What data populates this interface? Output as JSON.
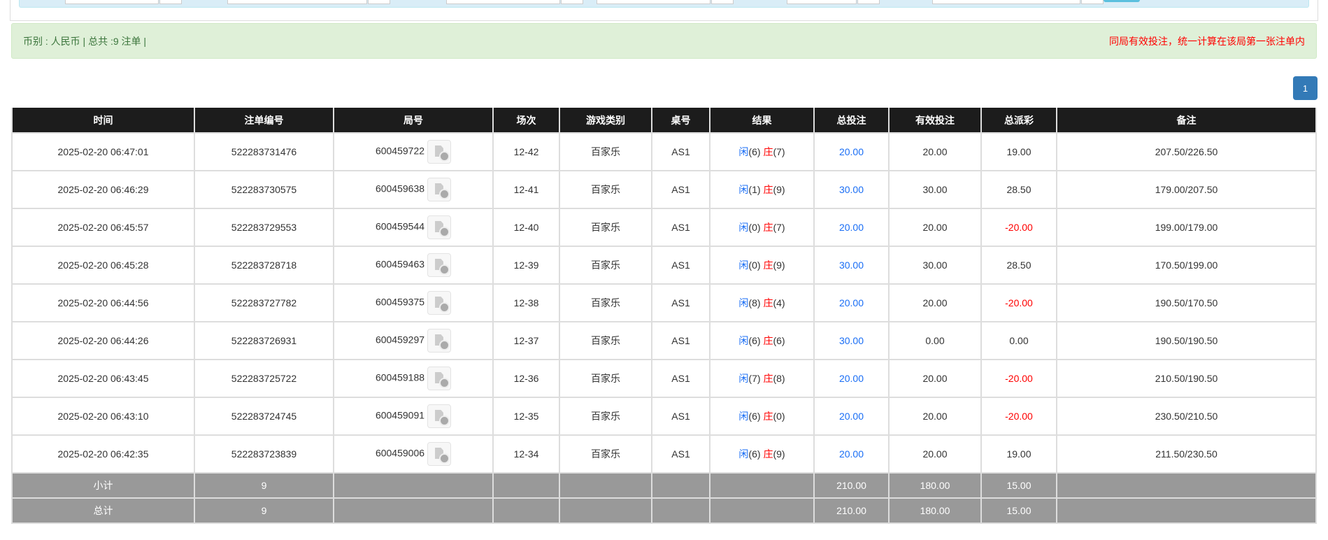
{
  "summary": {
    "left": "币别 : 人民币 | 总共 :9 注单 |",
    "right": "同局有效投注，统一计算在该局第一张注单内"
  },
  "pagination": {
    "current": "1"
  },
  "colors": {
    "player": "#1a6ef5",
    "banker": "#ff0000",
    "header": "#1c1c1c",
    "total_row": "#999999"
  },
  "table": {
    "headers": [
      "时间",
      "注单编号",
      "局号",
      "场次",
      "游戏类别",
      "桌号",
      "结果",
      "总投注",
      "有效投注",
      "总派彩",
      "备注"
    ],
    "rows": [
      {
        "time": "2025-02-20 06:47:01",
        "bet_id": "522283731476",
        "round": "600459722",
        "session": "12-42",
        "game": "百家乐",
        "table": "AS1",
        "player": "闲",
        "player_pts": "(6)",
        "banker": "庄",
        "banker_pts": "(7)",
        "total_bet": "20.00",
        "valid_bet": "20.00",
        "payout": "19.00",
        "payout_negative": false,
        "note": "207.50/226.50"
      },
      {
        "time": "2025-02-20 06:46:29",
        "bet_id": "522283730575",
        "round": "600459638",
        "session": "12-41",
        "game": "百家乐",
        "table": "AS1",
        "player": "闲",
        "player_pts": "(1)",
        "banker": "庄",
        "banker_pts": "(9)",
        "total_bet": "30.00",
        "valid_bet": "30.00",
        "payout": "28.50",
        "payout_negative": false,
        "note": "179.00/207.50"
      },
      {
        "time": "2025-02-20 06:45:57",
        "bet_id": "522283729553",
        "round": "600459544",
        "session": "12-40",
        "game": "百家乐",
        "table": "AS1",
        "player": "闲",
        "player_pts": "(0)",
        "banker": "庄",
        "banker_pts": "(7)",
        "total_bet": "20.00",
        "valid_bet": "20.00",
        "payout": "-20.00",
        "payout_negative": true,
        "note": "199.00/179.00"
      },
      {
        "time": "2025-02-20 06:45:28",
        "bet_id": "522283728718",
        "round": "600459463",
        "session": "12-39",
        "game": "百家乐",
        "table": "AS1",
        "player": "闲",
        "player_pts": "(0)",
        "banker": "庄",
        "banker_pts": "(9)",
        "total_bet": "30.00",
        "valid_bet": "30.00",
        "payout": "28.50",
        "payout_negative": false,
        "note": "170.50/199.00"
      },
      {
        "time": "2025-02-20 06:44:56",
        "bet_id": "522283727782",
        "round": "600459375",
        "session": "12-38",
        "game": "百家乐",
        "table": "AS1",
        "player": "闲",
        "player_pts": "(8)",
        "banker": "庄",
        "banker_pts": "(4)",
        "total_bet": "20.00",
        "valid_bet": "20.00",
        "payout": "-20.00",
        "payout_negative": true,
        "note": "190.50/170.50"
      },
      {
        "time": "2025-02-20 06:44:26",
        "bet_id": "522283726931",
        "round": "600459297",
        "session": "12-37",
        "game": "百家乐",
        "table": "AS1",
        "player": "闲",
        "player_pts": "(6)",
        "banker": "庄",
        "banker_pts": "(6)",
        "total_bet": "30.00",
        "valid_bet": "0.00",
        "payout": "0.00",
        "payout_negative": false,
        "note": "190.50/190.50"
      },
      {
        "time": "2025-02-20 06:43:45",
        "bet_id": "522283725722",
        "round": "600459188",
        "session": "12-36",
        "game": "百家乐",
        "table": "AS1",
        "player": "闲",
        "player_pts": "(7)",
        "banker": "庄",
        "banker_pts": "(8)",
        "total_bet": "20.00",
        "valid_bet": "20.00",
        "payout": "-20.00",
        "payout_negative": true,
        "note": "210.50/190.50"
      },
      {
        "time": "2025-02-20 06:43:10",
        "bet_id": "522283724745",
        "round": "600459091",
        "session": "12-35",
        "game": "百家乐",
        "table": "AS1",
        "player": "闲",
        "player_pts": "(6)",
        "banker": "庄",
        "banker_pts": "(0)",
        "total_bet": "20.00",
        "valid_bet": "20.00",
        "payout": "-20.00",
        "payout_negative": true,
        "note": "230.50/210.50"
      },
      {
        "time": "2025-02-20 06:42:35",
        "bet_id": "522283723839",
        "round": "600459006",
        "session": "12-34",
        "game": "百家乐",
        "table": "AS1",
        "player": "闲",
        "player_pts": "(6)",
        "banker": "庄",
        "banker_pts": "(9)",
        "total_bet": "20.00",
        "valid_bet": "20.00",
        "payout": "19.00",
        "payout_negative": false,
        "note": "211.50/230.50"
      }
    ],
    "subtotal": {
      "label": "小计",
      "count": "9",
      "total_bet": "210.00",
      "valid_bet": "180.00",
      "payout": "15.00"
    },
    "total": {
      "label": "总计",
      "count": "9",
      "total_bet": "210.00",
      "valid_bet": "180.00",
      "payout": "15.00"
    }
  }
}
